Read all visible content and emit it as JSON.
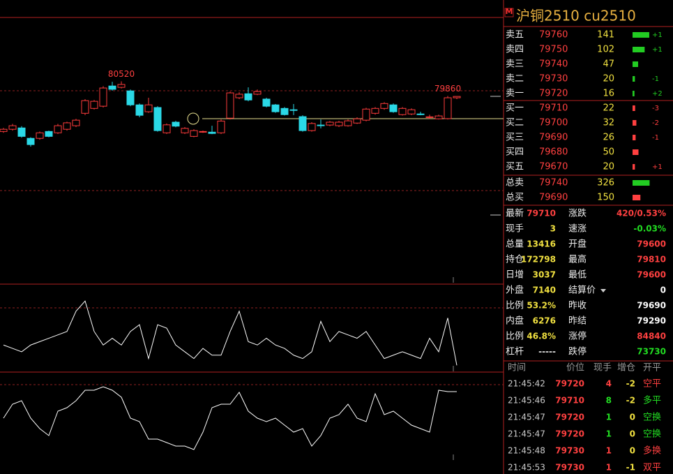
{
  "header": {
    "badge": "M",
    "title": "沪铜2510  cu2510"
  },
  "chart_data": [
    {
      "type": "candlestick",
      "ylim": [
        71600,
        83400
      ],
      "up_color": "#ff3b3b",
      "down_color": "#2ad8e6",
      "high_labels": [
        80520,
        79860
      ],
      "candles": [
        {
          "open": 78260,
          "high": 78420,
          "low": 78200,
          "close": 78360
        },
        {
          "open": 78360,
          "high": 78600,
          "low": 78300,
          "close": 78520
        },
        {
          "open": 78420,
          "high": 78500,
          "low": 77980,
          "close": 78040
        },
        {
          "open": 77950,
          "high": 78000,
          "low": 77580,
          "close": 77670
        },
        {
          "open": 77950,
          "high": 78260,
          "low": 77890,
          "close": 78200
        },
        {
          "open": 78260,
          "high": 78300,
          "low": 78000,
          "close": 78040
        },
        {
          "open": 78200,
          "high": 78600,
          "low": 78150,
          "close": 78520
        },
        {
          "open": 78360,
          "high": 78700,
          "low": 78300,
          "close": 78650
        },
        {
          "open": 78520,
          "high": 78830,
          "low": 78460,
          "close": 78770
        },
        {
          "open": 79080,
          "high": 79720,
          "low": 79000,
          "close": 79650
        },
        {
          "open": 79300,
          "high": 79680,
          "low": 79250,
          "close": 79620
        },
        {
          "open": 79400,
          "high": 80300,
          "low": 79340,
          "close": 80220
        },
        {
          "open": 80310,
          "high": 80500,
          "low": 80100,
          "close": 80160
        },
        {
          "open": 80250,
          "high": 80520,
          "low": 80200,
          "close": 80380
        },
        {
          "open": 80090,
          "high": 80150,
          "low": 79400,
          "close": 79460
        },
        {
          "open": 79460,
          "high": 79520,
          "low": 78900,
          "close": 78990
        },
        {
          "open": 79150,
          "high": 79780,
          "low": 79100,
          "close": 79460
        },
        {
          "open": 79340,
          "high": 79400,
          "low": 78250,
          "close": 78300
        },
        {
          "open": 78200,
          "high": 78620,
          "low": 78150,
          "close": 78560
        },
        {
          "open": 78680,
          "high": 78740,
          "low": 78450,
          "close": 78500
        },
        {
          "open": 78200,
          "high": 78460,
          "low": 78150,
          "close": 78400
        },
        {
          "open": 78040,
          "high": 78360,
          "low": 78000,
          "close": 78300
        },
        {
          "open": 78230,
          "high": 78300,
          "low": 78200,
          "close": 78260
        },
        {
          "open": 78230,
          "high": 78520,
          "low": 78140,
          "close": 78170
        },
        {
          "open": 78200,
          "high": 78800,
          "low": 78150,
          "close": 78730
        },
        {
          "open": 78860,
          "high": 80060,
          "low": 78800,
          "close": 80000
        },
        {
          "open": 79780,
          "high": 80030,
          "low": 79720,
          "close": 79940
        },
        {
          "open": 79960,
          "high": 80250,
          "low": 79620,
          "close": 79680
        },
        {
          "open": 79940,
          "high": 80150,
          "low": 79900,
          "close": 80060
        },
        {
          "open": 79720,
          "high": 79780,
          "low": 79350,
          "close": 79400
        },
        {
          "open": 79460,
          "high": 79500,
          "low": 79100,
          "close": 79150
        },
        {
          "open": 79300,
          "high": 79360,
          "low": 78980,
          "close": 79020
        },
        {
          "open": 79240,
          "high": 79500,
          "low": 79000,
          "close": 79220
        },
        {
          "open": 78930,
          "high": 78990,
          "low": 78250,
          "close": 78300
        },
        {
          "open": 78300,
          "high": 78680,
          "low": 78250,
          "close": 78620
        },
        {
          "open": 78550,
          "high": 78800,
          "low": 78400,
          "close": 78530
        },
        {
          "open": 78550,
          "high": 78730,
          "low": 78500,
          "close": 78680
        },
        {
          "open": 78520,
          "high": 78740,
          "low": 78460,
          "close": 78680
        },
        {
          "open": 78520,
          "high": 78800,
          "low": 78480,
          "close": 78740
        },
        {
          "open": 78640,
          "high": 78900,
          "low": 78600,
          "close": 78830
        },
        {
          "open": 78770,
          "high": 79330,
          "low": 78720,
          "close": 79270
        },
        {
          "open": 79080,
          "high": 79360,
          "low": 79020,
          "close": 79300
        },
        {
          "open": 79300,
          "high": 79580,
          "low": 79240,
          "close": 79520
        },
        {
          "open": 79460,
          "high": 79520,
          "low": 79100,
          "close": 79150
        },
        {
          "open": 79020,
          "high": 79360,
          "low": 78980,
          "close": 79300
        },
        {
          "open": 79050,
          "high": 79300,
          "low": 79000,
          "close": 79240
        },
        {
          "open": 79050,
          "high": 79150,
          "low": 78990,
          "close": 79020
        },
        {
          "open": 78900,
          "high": 79020,
          "low": 78830,
          "close": 78920
        },
        {
          "open": 78830,
          "high": 79020,
          "low": 78800,
          "close": 78960
        },
        {
          "open": 78840,
          "high": 79860,
          "low": 78800,
          "close": 79780
        },
        {
          "open": 79780,
          "high": 79850,
          "low": 79720,
          "close": 79840
        }
      ]
    },
    {
      "type": "line",
      "ylim": [
        0,
        130
      ],
      "color": "#ffffff",
      "values": [
        40,
        35,
        30,
        40,
        45,
        50,
        55,
        60,
        90,
        105,
        60,
        40,
        50,
        40,
        60,
        70,
        20,
        70,
        65,
        40,
        30,
        20,
        35,
        25,
        25,
        60,
        90,
        45,
        40,
        50,
        40,
        35,
        25,
        20,
        30,
        75,
        45,
        60,
        55,
        50,
        60,
        40,
        20,
        25,
        30,
        25,
        20,
        50,
        30,
        80,
        10
      ]
    },
    {
      "type": "line",
      "ylim": [
        0,
        146
      ],
      "color": "#ffffff",
      "values": [
        80,
        100,
        105,
        80,
        65,
        55,
        90,
        95,
        105,
        120,
        120,
        125,
        120,
        110,
        80,
        75,
        50,
        50,
        45,
        40,
        40,
        35,
        60,
        95,
        100,
        100,
        117,
        90,
        80,
        75,
        80,
        70,
        60,
        65,
        40,
        55,
        80,
        85,
        100,
        80,
        75,
        115,
        85,
        90,
        80,
        70,
        65,
        60,
        120,
        118,
        118
      ]
    }
  ],
  "order_book": {
    "ask_color": "#22cc22",
    "bid_color": "#ff4040",
    "asks": [
      {
        "label": "卖五",
        "price": 79760,
        "volume": 141,
        "change": "+1"
      },
      {
        "label": "卖四",
        "price": 79750,
        "volume": 102,
        "change": "+1"
      },
      {
        "label": "卖三",
        "price": 79740,
        "volume": 47,
        "change": null
      },
      {
        "label": "卖二",
        "price": 79730,
        "volume": 20,
        "change": "-1"
      },
      {
        "label": "卖一",
        "price": 79720,
        "volume": 16,
        "change": "+2"
      }
    ],
    "bids": [
      {
        "label": "买一",
        "price": 79710,
        "volume": 22,
        "change": "-3"
      },
      {
        "label": "买二",
        "price": 79700,
        "volume": 32,
        "change": "-2"
      },
      {
        "label": "买三",
        "price": 79690,
        "volume": 26,
        "change": "-1"
      },
      {
        "label": "买四",
        "price": 79680,
        "volume": 50,
        "change": null
      },
      {
        "label": "买五",
        "price": 79670,
        "volume": 20,
        "change": "+1"
      }
    ],
    "totals": [
      {
        "label": "总卖",
        "price": 79740,
        "volume": 326
      },
      {
        "label": "总买",
        "price": 79690,
        "volume": 150
      }
    ]
  },
  "stats_left": [
    {
      "label": "最新",
      "value": 79710,
      "color": "#ff4040"
    },
    {
      "label": "现手",
      "value": 3,
      "color": "#f0e040"
    },
    {
      "label": "总量",
      "value": 13416,
      "color": "#f0e040"
    },
    {
      "label": "持仓",
      "value": 172798,
      "color": "#f0e040"
    },
    {
      "label": "日增",
      "value": 3037,
      "color": "#f0e040"
    },
    {
      "label": "外盘",
      "value": 7140,
      "color": "#f0e040"
    },
    {
      "label": "比例",
      "value": "53.2%",
      "color": "#f0e040"
    },
    {
      "label": "内盘",
      "value": 6276,
      "color": "#f0e040"
    },
    {
      "label": "比例",
      "value": "46.8%",
      "color": "#f0e040"
    },
    {
      "label": "杠杆",
      "value": "-----",
      "color": "#dddddd"
    }
  ],
  "stats_right": [
    {
      "label": "涨跌",
      "value": "420/0.53%",
      "color": "#ff4040"
    },
    {
      "label": "速涨",
      "value": "-0.03%",
      "color": "#22dd22"
    },
    {
      "label": "开盘",
      "value": 79600,
      "color": "#ff4040"
    },
    {
      "label": "最高",
      "value": 79810,
      "color": "#ff4040"
    },
    {
      "label": "最低",
      "value": 79600,
      "color": "#ff4040"
    },
    {
      "label": "结算价",
      "value": 0,
      "color": "#ffffff"
    },
    {
      "label": "昨收",
      "value": 79690,
      "color": "#ffffff"
    },
    {
      "label": "昨结",
      "value": 79290,
      "color": "#ffffff"
    },
    {
      "label": "涨停",
      "value": 84840,
      "color": "#ff4040"
    },
    {
      "label": "跌停",
      "value": 73730,
      "color": "#22dd22"
    }
  ],
  "trades": {
    "header": [
      "时间",
      "价位",
      "现手",
      "增仓",
      "开平"
    ],
    "rows": [
      {
        "time": "21:45:42",
        "price": 79720,
        "qty": 4,
        "oi": -2,
        "kind": "空平",
        "color": "#ff4040"
      },
      {
        "time": "21:45:46",
        "price": 79710,
        "qty": 8,
        "oi": -2,
        "kind": "多平",
        "color": "#22dd22"
      },
      {
        "time": "21:45:47",
        "price": 79720,
        "qty": 1,
        "oi": 0,
        "kind": "空换",
        "color": "#22dd22"
      },
      {
        "time": "21:45:47",
        "price": 79720,
        "qty": 1,
        "oi": 0,
        "kind": "空换",
        "color": "#22dd22"
      },
      {
        "time": "21:45:48",
        "price": 79730,
        "qty": 1,
        "oi": 0,
        "kind": "多换",
        "color": "#ff4040"
      },
      {
        "time": "21:45:53",
        "price": 79730,
        "qty": 1,
        "oi": -1,
        "kind": "双平",
        "color": "#ff4040"
      }
    ]
  }
}
